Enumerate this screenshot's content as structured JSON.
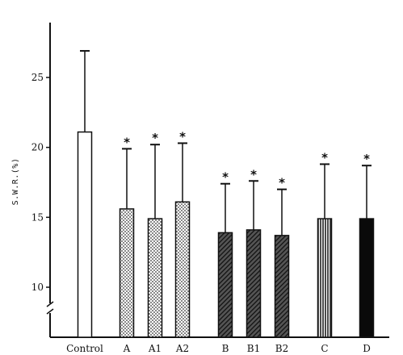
{
  "chart_data": {
    "type": "bar",
    "title": "",
    "xlabel": "",
    "ylabel": "S.W.R.(%)",
    "ylim": [
      8,
      28
    ],
    "yticks": [
      10,
      15,
      20,
      25
    ],
    "axis_break": true,
    "grid": false,
    "categories": [
      "Control",
      "A",
      "A1",
      "A2",
      "B",
      "B1",
      "B2",
      "C",
      "D"
    ],
    "values": [
      21.1,
      15.6,
      14.9,
      16.1,
      13.9,
      14.1,
      13.7,
      14.9,
      14.9
    ],
    "error_upper": [
      26.9,
      19.9,
      20.2,
      20.3,
      17.4,
      17.6,
      17.0,
      18.8,
      18.7
    ],
    "significance": [
      "",
      "*",
      "*",
      "*",
      "*",
      "*",
      "*",
      "*",
      "*"
    ],
    "bar_fills": [
      "white",
      "dots",
      "dots",
      "dots",
      "hatch",
      "hatch",
      "hatch",
      "vertical-lines",
      "black"
    ]
  }
}
